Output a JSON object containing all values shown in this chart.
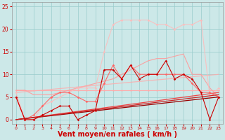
{
  "xlabel": "Vent moyen/en rafales ( km/h )",
  "xlabel_fontsize": 7,
  "bg_color": "#cce8e8",
  "grid_color": "#99cccc",
  "tick_color": "#cc0000",
  "label_color": "#cc0000",
  "xlim": [
    -0.5,
    23.5
  ],
  "ylim": [
    -1,
    26
  ],
  "xticks": [
    0,
    1,
    2,
    3,
    4,
    5,
    6,
    7,
    8,
    9,
    10,
    11,
    12,
    13,
    14,
    15,
    16,
    17,
    18,
    19,
    20,
    21,
    22,
    23
  ],
  "yticks": [
    0,
    5,
    10,
    15,
    20,
    25
  ],
  "lines": [
    {
      "x": [
        0,
        1,
        2,
        3,
        4,
        5,
        6,
        7,
        8,
        9,
        10,
        11,
        12,
        13,
        14,
        15,
        16,
        17,
        18,
        19,
        20,
        21,
        22,
        23
      ],
      "y": [
        5,
        0,
        0,
        1,
        2,
        3,
        3,
        0,
        1,
        2,
        11,
        11,
        9,
        12,
        9,
        10,
        10,
        13,
        9,
        10,
        9,
        6,
        0,
        5
      ],
      "color": "#cc0000",
      "lw": 0.8,
      "marker": "D",
      "ms": 1.8,
      "alpha": 1.0,
      "zorder": 5
    },
    {
      "x": [
        0,
        1,
        2,
        3,
        4,
        5,
        6,
        7,
        8,
        9,
        10,
        11,
        12,
        13,
        14,
        15,
        16,
        17,
        18,
        19,
        20,
        21,
        22,
        23
      ],
      "y": [
        6.5,
        6.5,
        6.5,
        6.5,
        6.5,
        6.5,
        6.5,
        6.5,
        6.5,
        6.5,
        6.5,
        6.5,
        6.5,
        6.5,
        6.5,
        6.5,
        6.5,
        6.5,
        6.5,
        6.5,
        6.5,
        6.5,
        6.5,
        6.5
      ],
      "color": "#ffaaaa",
      "lw": 0.8,
      "marker": "D",
      "ms": 1.5,
      "alpha": 1.0,
      "zorder": 2
    },
    {
      "x": [
        0,
        1,
        2,
        3,
        4,
        5,
        6,
        7,
        8,
        9,
        10,
        11,
        12,
        13,
        14,
        15,
        16,
        17,
        18,
        19,
        20,
        21,
        22,
        23
      ],
      "y": [
        5,
        0,
        1,
        3,
        5,
        6,
        6,
        5,
        4,
        4,
        8,
        12,
        9,
        12,
        10,
        10,
        10,
        10,
        10,
        10,
        8,
        6,
        6,
        5
      ],
      "color": "#ff6666",
      "lw": 0.8,
      "marker": "D",
      "ms": 1.8,
      "alpha": 1.0,
      "zorder": 4
    },
    {
      "x": [
        0,
        1,
        2,
        3,
        4,
        5,
        6,
        7,
        8,
        9,
        10,
        11,
        12,
        13,
        14,
        15,
        16,
        17,
        18,
        19,
        20,
        21,
        22,
        23
      ],
      "y": [
        6,
        0,
        0,
        3,
        4,
        5,
        6,
        7,
        7,
        7,
        15,
        21,
        22,
        22,
        22,
        22,
        21,
        21,
        20,
        21,
        21,
        22,
        5,
        7
      ],
      "color": "#ffbbbb",
      "lw": 0.8,
      "marker": "D",
      "ms": 1.8,
      "alpha": 0.85,
      "zorder": 3
    },
    {
      "x": [
        0,
        1,
        2,
        3,
        4,
        5,
        6,
        7,
        8,
        9,
        10,
        11,
        12,
        13,
        14,
        15,
        16,
        17,
        18,
        19,
        20,
        21,
        22,
        23
      ],
      "y": [
        6.5,
        6.5,
        5.5,
        5.5,
        5.5,
        6,
        6.5,
        7,
        7.5,
        8,
        8.5,
        9,
        10,
        11,
        12,
        13,
        13.5,
        13.5,
        14,
        14.5,
        10,
        10,
        7,
        5
      ],
      "color": "#ff9999",
      "lw": 0.8,
      "marker": null,
      "ms": 0,
      "alpha": 0.9,
      "zorder": 2
    },
    {
      "x": [
        0,
        23
      ],
      "y": [
        0,
        5
      ],
      "color": "#990000",
      "lw": 0.9,
      "marker": null,
      "ms": 0,
      "alpha": 1.0,
      "zorder": 4
    },
    {
      "x": [
        0,
        23
      ],
      "y": [
        0,
        5.5
      ],
      "color": "#cc2222",
      "lw": 0.9,
      "marker": null,
      "ms": 0,
      "alpha": 1.0,
      "zorder": 4
    },
    {
      "x": [
        0,
        23
      ],
      "y": [
        0,
        6
      ],
      "color": "#ee4444",
      "lw": 0.9,
      "marker": null,
      "ms": 0,
      "alpha": 1.0,
      "zorder": 3
    },
    {
      "x": [
        0,
        23
      ],
      "y": [
        6,
        10
      ],
      "color": "#ffaaaa",
      "lw": 0.9,
      "marker": null,
      "ms": 0,
      "alpha": 0.8,
      "zorder": 2
    }
  ]
}
